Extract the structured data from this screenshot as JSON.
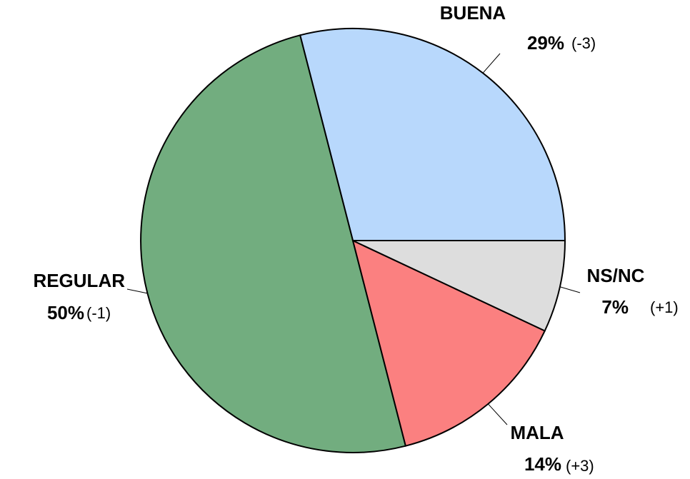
{
  "chart_data": {
    "type": "pie",
    "categories": [
      "BUENA",
      "REGULAR",
      "MALA",
      "NS/NC"
    ],
    "values": [
      29,
      50,
      14,
      7
    ],
    "value_labels": [
      "29%",
      "50%",
      "14%",
      "7%"
    ],
    "changes": [
      "(-3)",
      "(-1)",
      "(+3)",
      "(+1)"
    ],
    "colors": [
      "#b8d8fc",
      "#72ad7f",
      "#fb8080",
      "#dddddd"
    ]
  }
}
